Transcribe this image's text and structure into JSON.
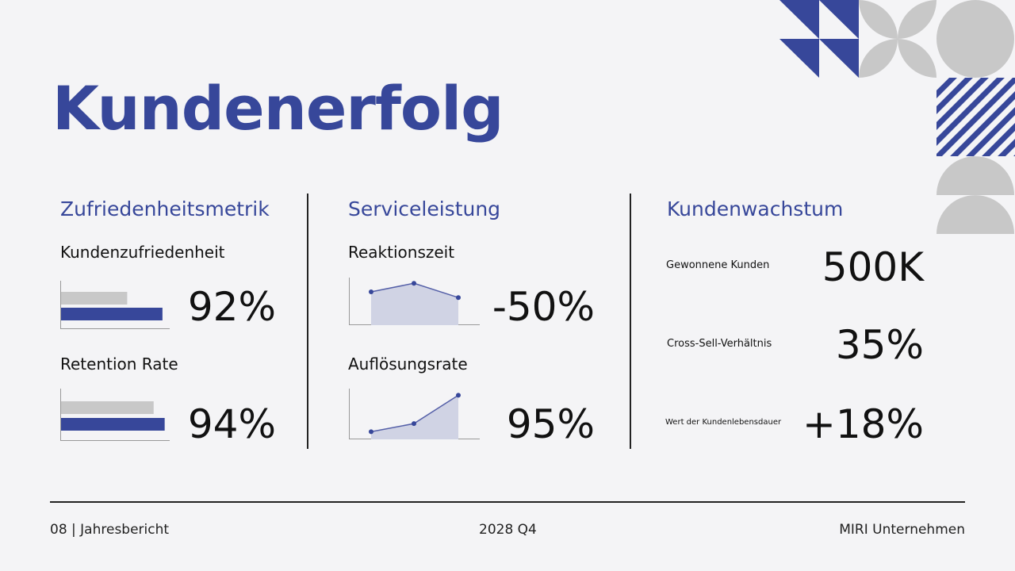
{
  "title": "Kundenerfolg",
  "colors": {
    "accent": "#37479a",
    "gray": "#c8c8c8",
    "background": "#f4f4f6"
  },
  "columns": [
    {
      "heading": "Zufriedenheitsmetrik",
      "metrics": [
        {
          "label": "Kundenzufriedenheit",
          "value": "92%",
          "chart": {
            "type": "bar",
            "bars": [
              {
                "color": "gray",
                "fraction": 0.6
              },
              {
                "color": "accent",
                "fraction": 0.92
              }
            ]
          }
        },
        {
          "label": "Retention Rate",
          "value": "94%",
          "chart": {
            "type": "bar",
            "bars": [
              {
                "color": "gray",
                "fraction": 0.84
              },
              {
                "color": "accent",
                "fraction": 0.94
              }
            ]
          }
        }
      ]
    },
    {
      "heading": "Serviceleistung",
      "metrics": [
        {
          "label": "Reaktionszeit",
          "value": "-50%",
          "chart": {
            "type": "area",
            "values": [
              0.7,
              0.88,
              0.58
            ]
          }
        },
        {
          "label": "Auflösungsrate",
          "value": "95%",
          "chart": {
            "type": "area",
            "values": [
              0.15,
              0.31,
              0.87
            ]
          }
        }
      ]
    },
    {
      "heading": "Kundenwachstum",
      "metrics": [
        {
          "label": "Gewonnene Kunden",
          "value": "500K"
        },
        {
          "label": "Cross-Sell-Verhältnis",
          "value": "35%"
        },
        {
          "label": "Wert der Kundenlebensdauer",
          "value": "+18%"
        }
      ]
    }
  ],
  "footer": {
    "left": "08 | Jahresbericht",
    "center": "2028 Q4",
    "right": "MIRI Unternehmen"
  }
}
